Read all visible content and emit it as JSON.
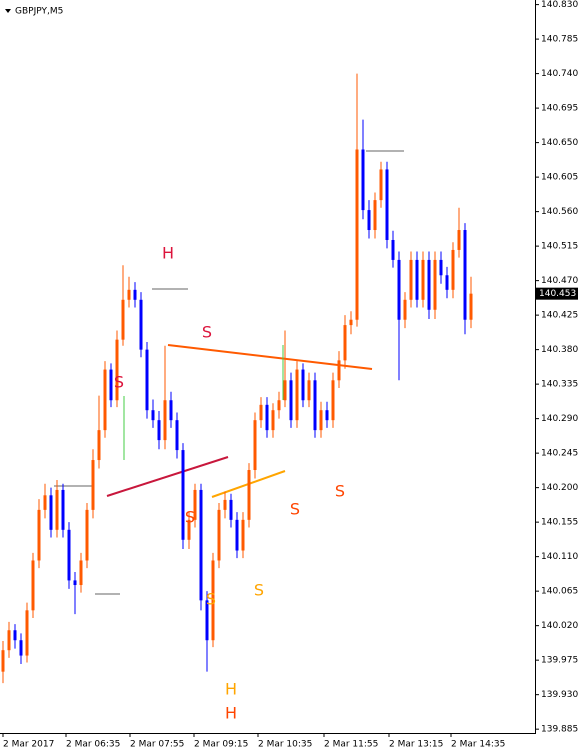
{
  "chart_data": {
    "type": "candlestick",
    "title": "GBPJPY,M5",
    "up_color": "#ff5a00",
    "down_color": "#0000ff",
    "ylim": [
      139.88,
      140.836
    ],
    "yticks": [
      {
        "value": 140.83,
        "label": "140.830"
      },
      140.785,
      {
        "value": 140.74,
        "label": "140.740"
      },
      140.695,
      {
        "value": 140.65,
        "label": "140.650"
      },
      140.605,
      {
        "value": 140.56,
        "label": "140.560"
      },
      140.515,
      {
        "value": 140.47,
        "label": "140.470"
      },
      140.425,
      {
        "value": 140.38,
        "label": "140.380"
      },
      140.335,
      {
        "value": 140.29,
        "label": "140.290"
      },
      140.245,
      {
        "value": 140.2,
        "label": "140.200"
      },
      140.155,
      {
        "value": 140.11,
        "label": "140.110"
      },
      140.065,
      {
        "value": 140.02,
        "label": "140.020"
      },
      139.975,
      {
        "value": 139.93,
        "label": "139.930"
      },
      139.885
    ],
    "xtick_labels": [
      "2 Mar 2017",
      "2 Mar 06:35",
      "2 Mar 07:55",
      "2 Mar 09:15",
      "2 Mar 10:35",
      "2 Mar 11:55",
      "2 Mar 13:15",
      "2 Mar 14:35"
    ],
    "open": [
      139.96,
      139.988,
      140.014,
      140.001,
      139.981,
      140.04,
      140.105,
      140.171,
      140.19,
      140.145,
      140.197,
      140.145,
      140.079,
      140.073,
      140.105,
      140.171,
      140.236,
      140.275,
      140.354,
      140.314,
      140.393,
      140.445,
      140.458,
      140.445,
      140.38,
      140.301,
      140.288,
      140.262,
      140.314,
      140.288,
      140.249,
      140.132,
      140.158,
      140.197,
      140.053,
      140.001,
      140.105,
      140.171,
      140.184,
      140.158,
      140.118,
      140.158,
      140.223,
      140.288,
      140.308,
      140.275,
      140.301,
      140.314,
      140.34,
      140.288,
      140.354,
      140.314,
      140.34,
      140.275,
      140.301,
      140.288,
      140.34,
      140.366,
      140.412,
      140.419,
      140.641,
      140.562,
      140.536,
      140.575,
      140.615,
      140.523,
      140.497,
      140.419,
      140.445,
      140.497,
      140.445,
      140.497,
      140.432,
      140.497,
      140.477,
      140.458,
      140.51,
      140.536,
      140.419
    ],
    "high": [
      140.0,
      140.025,
      140.022,
      140.01,
      140.05,
      140.115,
      140.185,
      140.205,
      140.2,
      140.21,
      140.205,
      140.155,
      140.09,
      140.115,
      140.18,
      140.25,
      140.32,
      140.365,
      140.362,
      140.405,
      140.49,
      140.475,
      140.468,
      140.455,
      140.39,
      140.315,
      140.3,
      140.385,
      140.325,
      140.298,
      140.258,
      140.168,
      140.205,
      140.205,
      140.065,
      140.115,
      140.18,
      140.195,
      140.192,
      140.168,
      140.168,
      140.232,
      140.298,
      140.318,
      140.318,
      140.31,
      140.325,
      140.405,
      140.35,
      140.365,
      140.362,
      140.35,
      140.35,
      140.312,
      140.312,
      140.35,
      140.378,
      140.425,
      140.43,
      140.74,
      140.68,
      140.575,
      140.585,
      140.625,
      140.625,
      140.535,
      140.508,
      140.455,
      140.508,
      140.508,
      140.508,
      140.508,
      140.508,
      140.508,
      140.488,
      140.52,
      140.565,
      140.545,
      140.475
    ],
    "low": [
      139.945,
      139.978,
      139.99,
      139.97,
      139.972,
      140.03,
      140.095,
      140.16,
      140.135,
      140.135,
      140.135,
      140.068,
      140.035,
      140.063,
      140.095,
      140.16,
      140.225,
      140.265,
      140.305,
      140.305,
      140.385,
      140.435,
      140.435,
      140.37,
      140.29,
      140.278,
      140.25,
      140.25,
      140.278,
      140.238,
      140.12,
      140.12,
      140.148,
      140.04,
      139.96,
      139.992,
      140.095,
      140.16,
      140.148,
      140.108,
      140.108,
      140.148,
      140.212,
      140.278,
      140.265,
      140.265,
      140.29,
      140.305,
      140.278,
      140.278,
      140.305,
      140.305,
      140.265,
      140.265,
      140.278,
      140.278,
      140.33,
      140.355,
      140.4,
      140.41,
      140.55,
      140.525,
      140.525,
      140.565,
      140.512,
      140.487,
      140.34,
      140.408,
      140.435,
      140.435,
      140.435,
      140.42,
      140.42,
      140.466,
      140.447,
      140.447,
      140.5,
      140.4,
      140.408
    ],
    "close": [
      139.988,
      140.014,
      140.001,
      139.981,
      140.04,
      140.105,
      140.171,
      140.19,
      140.145,
      140.197,
      140.145,
      140.079,
      140.073,
      140.105,
      140.171,
      140.236,
      140.275,
      140.354,
      140.314,
      140.393,
      140.445,
      140.458,
      140.445,
      140.38,
      140.301,
      140.288,
      140.262,
      140.314,
      140.288,
      140.249,
      140.132,
      140.158,
      140.197,
      140.053,
      140.001,
      140.105,
      140.171,
      140.184,
      140.158,
      140.118,
      140.158,
      140.223,
      140.288,
      140.308,
      140.275,
      140.301,
      140.314,
      140.34,
      140.288,
      140.354,
      140.314,
      140.34,
      140.275,
      140.301,
      140.288,
      140.34,
      140.366,
      140.412,
      140.419,
      140.641,
      140.562,
      140.536,
      140.575,
      140.615,
      140.523,
      140.497,
      140.419,
      140.445,
      140.497,
      140.445,
      140.497,
      140.432,
      140.497,
      140.477,
      140.458,
      140.51,
      140.536,
      140.419,
      140.453
    ],
    "annotations": [
      {
        "text": "H",
        "color": "#dc143c"
      },
      {
        "text": "S",
        "color": "#dc143c"
      },
      {
        "text": "S",
        "color": "#dc143c"
      },
      {
        "text": "S",
        "color": "#ff4500"
      },
      {
        "text": "S",
        "color": "#ff4500"
      },
      {
        "text": "S",
        "color": "#ff4500"
      },
      {
        "text": "S",
        "color": "#ffa500"
      },
      {
        "text": "S",
        "color": "#ffa500"
      },
      {
        "text": "H",
        "color": "#ffa500"
      },
      {
        "text": "H",
        "color": "#ff4500"
      }
    ]
  }
}
